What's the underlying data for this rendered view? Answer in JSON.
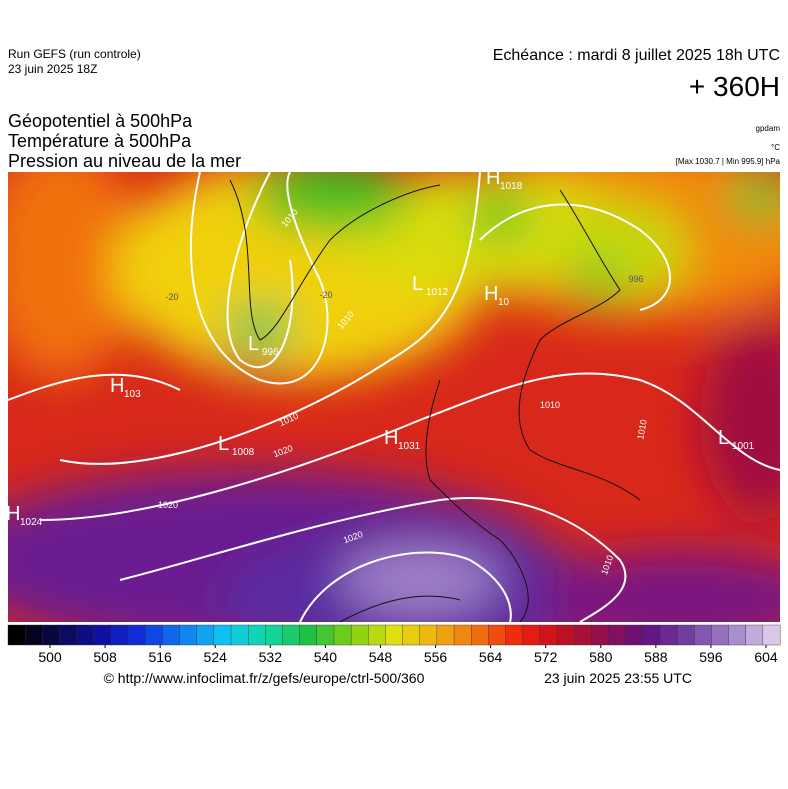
{
  "header": {
    "run": "Run GEFS (run controle)",
    "run_date": "23 juin 2025 18Z",
    "valid": "Echéance : mardi 8 juillet 2025 18h UTC",
    "lead": "+ 360H",
    "fields": [
      "Géopotentiel à 500hPa",
      "Température à 500hPa",
      "Pression au niveau de la mer"
    ],
    "units": [
      "gpdam",
      "°C",
      "[Max 1030.7 | Min 995.9] hPa"
    ]
  },
  "map": {
    "centers": [
      {
        "kind": "H",
        "value": "1018"
      },
      {
        "kind": "L",
        "value": "1012"
      },
      {
        "kind": "H",
        "value": "10"
      },
      {
        "kind": "H",
        "value": "103"
      },
      {
        "kind": "L",
        "value": "996"
      },
      {
        "kind": "L",
        "value": "1008"
      },
      {
        "kind": "H",
        "value": "1031"
      },
      {
        "kind": "L",
        "value": "1001"
      },
      {
        "kind": "H",
        "value": "1024"
      }
    ],
    "isobar_labels": [
      "1010",
      "1010",
      "1010",
      "1020",
      "1020",
      "1020",
      "1010",
      "1010",
      "1010",
      "-20",
      "-20",
      "996"
    ]
  },
  "colorbar": {
    "ticks": [
      500,
      508,
      516,
      524,
      532,
      540,
      548,
      556,
      564,
      572,
      580,
      588,
      596,
      604
    ]
  },
  "footer": {
    "url": "© http://www.infoclimat.fr/z/gefs/europe/ctrl-500/360",
    "generated": "23 juin 2025 23:55 UTC"
  }
}
